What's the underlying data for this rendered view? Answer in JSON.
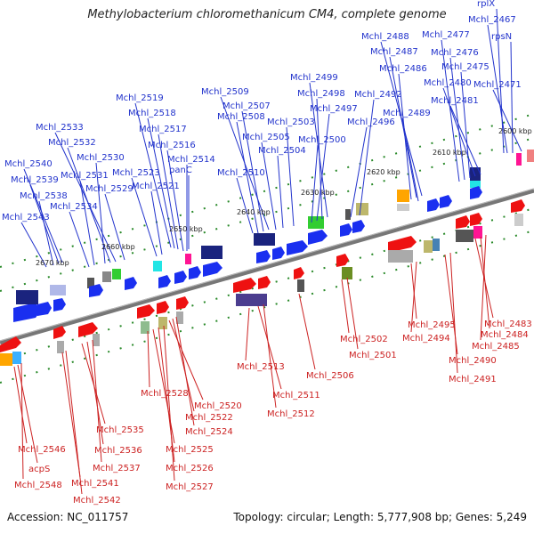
{
  "title": "Methylobacterium chloromethanicum CM4, complete genome",
  "accession": "Accession: NC_011757",
  "topology": "Topology: circular; Length: 5,777,908 bp; Genes: 5,249",
  "colors": {
    "forward_label": "#2233cc",
    "reverse_label": "#cc2222",
    "forward_gene": "#1a2ff0",
    "reverse_gene": "#ee1111",
    "backbone": "#777777",
    "tick": "#2a8a2a"
  },
  "ticks": [
    "2670 kbp",
    "2660 kbp",
    "2650 kbp",
    "2640 kbp",
    "2630 kbp",
    "2620 kbp",
    "2610 kbp",
    "2600 kbp"
  ],
  "top_labels": [
    "Mchl_2543",
    "Mchl_2538",
    "Mchl_2539",
    "Mchl_2540",
    "Mchl_2534",
    "Mchl_2531",
    "Mchl_2530",
    "Mchl_2532",
    "Mchl_2533",
    "Mchl_2529",
    "Mchl_2523",
    "Mchl_2521",
    "Mchl_2514",
    "Mchl_2516",
    "Mchl_2517",
    "Mchl_2518",
    "Mchl_2519",
    "panC",
    "Mchl_2510",
    "Mchl_2508",
    "Mchl_2507",
    "Mchl_2509",
    "Mchl_2505",
    "Mchl_2504",
    "Mchl_2503",
    "Mchl_2500",
    "Mchl_2497",
    "Mchl_2498",
    "Mchl_2499",
    "Mchl_2496",
    "Mchl_2492",
    "Mchl_2489",
    "Mchl_2486",
    "Mchl_2487",
    "Mchl_2488",
    "Mchl_2477",
    "Mchl_2476",
    "Mchl_2475",
    "Mchl_2480",
    "Mchl_2481",
    "Mchl_2471",
    "rpsN",
    "Mchl_2467",
    "rplX"
  ],
  "bottom_labels": [
    "Mchl_2546",
    "acpS",
    "Mchl_2548",
    "Mchl_2541",
    "Mchl_2542",
    "Mchl_2535",
    "Mchl_2536",
    "Mchl_2537",
    "Mchl_2528",
    "Mchl_2525",
    "Mchl_2526",
    "Mchl_2527",
    "Mchl_2520",
    "Mchl_2522",
    "Mchl_2524",
    "Mchl_2513",
    "Mchl_2511",
    "Mchl_2512",
    "Mchl_2506",
    "Mchl_2502",
    "Mchl_2501",
    "Mchl_2495",
    "Mchl_2494",
    "Mchl_2490",
    "Mchl_2491",
    "Mchl_2483",
    "Mchl_2484",
    "Mchl_2485"
  ]
}
